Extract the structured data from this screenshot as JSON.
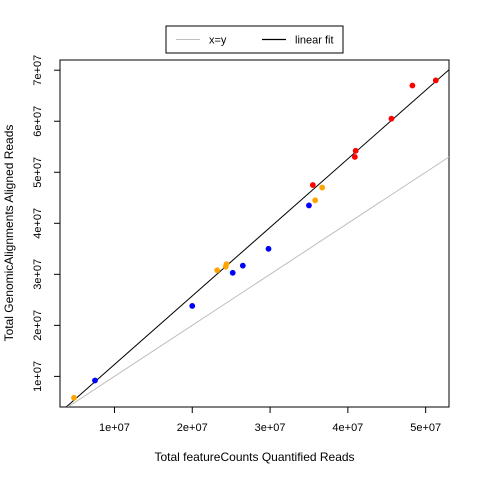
{
  "chart_data": {
    "type": "scatter",
    "title": "",
    "xlabel": "Total featureCounts Quantified Reads",
    "ylabel": "Total GenomicAlignments Aligned Reads",
    "xlim": [
      3000000,
      53000000
    ],
    "ylim": [
      4000000,
      72000000
    ],
    "x_ticks": [
      10000000,
      20000000,
      30000000,
      40000000,
      50000000
    ],
    "x_tick_labels": [
      "1e+07",
      "2e+07",
      "3e+07",
      "4e+07",
      "5e+07"
    ],
    "y_ticks": [
      10000000,
      20000000,
      30000000,
      40000000,
      50000000,
      60000000,
      70000000
    ],
    "y_tick_labels": [
      "1e+07",
      "2e+07",
      "3e+07",
      "4e+07",
      "5e+07",
      "6e+07",
      "7e+07"
    ],
    "grid": false,
    "legend": {
      "position": "top-center",
      "entries": [
        {
          "label": "x=y",
          "color": "#bebebe"
        },
        {
          "label": "linear fit",
          "color": "#000000"
        }
      ]
    },
    "reference_line": {
      "name": "x=y",
      "color": "#bebebe",
      "slope": 1,
      "intercept": 0
    },
    "fit_line": {
      "name": "linear fit",
      "color": "#000000",
      "points": [
        [
          3800000,
          4000000
        ],
        [
          53000000,
          70100000
        ]
      ]
    },
    "series": [
      {
        "color": "#0000ff",
        "points": [
          {
            "x": 7500000,
            "y": 9200000
          },
          {
            "x": 20000000,
            "y": 23800000
          },
          {
            "x": 25200000,
            "y": 30300000
          },
          {
            "x": 26500000,
            "y": 31700000
          },
          {
            "x": 29800000,
            "y": 35000000
          },
          {
            "x": 35000000,
            "y": 43500000
          }
        ]
      },
      {
        "color": "#ffa500",
        "points": [
          {
            "x": 4800000,
            "y": 5800000
          },
          {
            "x": 23200000,
            "y": 30800000
          },
          {
            "x": 24300000,
            "y": 31500000
          },
          {
            "x": 24400000,
            "y": 32000000
          },
          {
            "x": 35800000,
            "y": 44500000
          },
          {
            "x": 36700000,
            "y": 47000000
          }
        ]
      },
      {
        "color": "#ff0000",
        "points": [
          {
            "x": 35500000,
            "y": 47500000
          },
          {
            "x": 40900000,
            "y": 53000000
          },
          {
            "x": 41000000,
            "y": 54200000
          },
          {
            "x": 45600000,
            "y": 60500000
          },
          {
            "x": 48300000,
            "y": 67000000
          },
          {
            "x": 51300000,
            "y": 68000000
          }
        ]
      }
    ]
  }
}
